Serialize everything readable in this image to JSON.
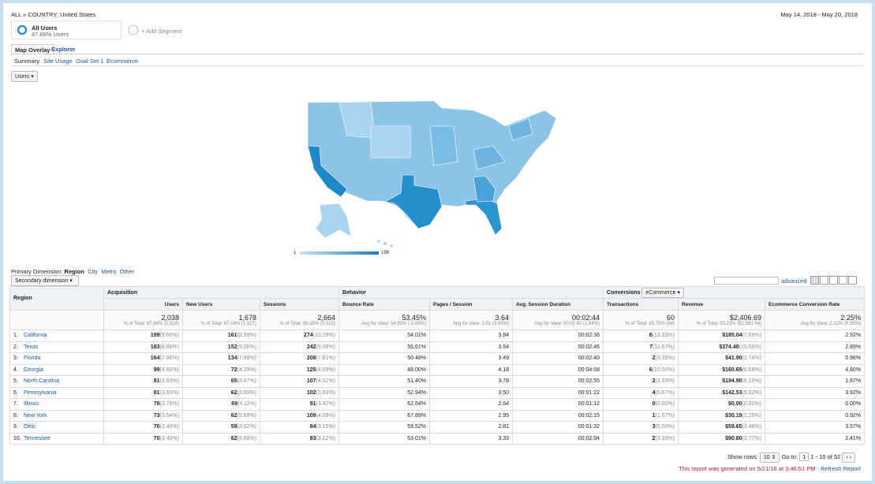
{
  "header": {
    "breadcrumb": "ALL » COUNTRY: United States",
    "date_range": "May 14, 2018 - May 20, 2018"
  },
  "segments": {
    "name": "All Users",
    "sub": "87.88% Users",
    "add": "+ Add Segment"
  },
  "tabs": [
    "Map Overlay",
    "Explorer"
  ],
  "subtabs": [
    "Summary",
    "Site Usage",
    "Goal Set 1",
    "Ecommerce"
  ],
  "metric_select": "Users",
  "map": {
    "legend_min": "1",
    "legend_max": "199"
  },
  "dimensions": {
    "label": "Primary Dimension:",
    "options": [
      "Region",
      "City",
      "Metro",
      "Other"
    ],
    "secondary": "Secondary dimension",
    "advanced": "advanced"
  },
  "table": {
    "region_header": "Region",
    "groups": [
      "Acquisition",
      "Behavior",
      "Conversions"
    ],
    "conversion_select": "eCommerce",
    "columns": [
      "Users",
      "New Users",
      "Sessions",
      "Bounce Rate",
      "Pages / Session",
      "Avg. Session Duration",
      "Transactions",
      "Revenue",
      "Ecommerce Conversion Rate"
    ],
    "totals": [
      [
        "2,038",
        "% of Total: 87.88% (2,319)"
      ],
      [
        "1,678",
        "% of Total: 87.08% (1,927)"
      ],
      [
        "2,664",
        "% of Total: 88.15% (3,022)"
      ],
      [
        "53.45%",
        "Avg for View: 54.93% (-2.69%)"
      ],
      [
        "3.64",
        "Avg for View: 3.51 (3.68%)"
      ],
      [
        "00:02:44",
        "Avg for View: 00:02:42 (1.64%)"
      ],
      [
        "60",
        "% of Total: 93.75% (64)"
      ],
      [
        "$2,406.69",
        "% of Total: 93.23% ($2,581.44)"
      ],
      [
        "2.25%",
        "Avg for View: 2.12% (6.35%)"
      ]
    ],
    "rows": [
      {
        "num": "1.",
        "region": "California",
        "cells": [
          [
            "199",
            "(9.66%)"
          ],
          [
            "161",
            "(9.59%)"
          ],
          [
            "274",
            "(10.29%)"
          ],
          "54.01%",
          "3.84",
          "00:02:36",
          [
            "8",
            "(13.33%)"
          ],
          [
            "$185.04",
            "(7.69%)"
          ],
          "2.92%"
        ]
      },
      {
        "num": "2.",
        "region": "Texas",
        "cells": [
          [
            "183",
            "(8.88%)"
          ],
          [
            "152",
            "(9.06%)"
          ],
          [
            "242",
            "(9.08%)"
          ],
          "56.61%",
          "3.54",
          "00:02:46",
          [
            "7",
            "(11.67%)"
          ],
          [
            "$374.40",
            "(15.56%)"
          ],
          "2.89%"
        ]
      },
      {
        "num": "3.",
        "region": "Florida",
        "cells": [
          [
            "164",
            "(7.96%)"
          ],
          [
            "134",
            "(7.99%)"
          ],
          [
            "208",
            "(7.81%)"
          ],
          "50.48%",
          "3.49",
          "00:02:40",
          [
            "2",
            "(3.33%)"
          ],
          [
            "$41.90",
            "(1.74%)"
          ],
          "0.96%"
        ]
      },
      {
        "num": "4.",
        "region": "Georgia",
        "cells": [
          [
            "99",
            "(4.80%)"
          ],
          [
            "72",
            "(4.29%)"
          ],
          [
            "125",
            "(4.69%)"
          ],
          "48.00%",
          "4.18",
          "00:04:08",
          [
            "6",
            "(10.00%)"
          ],
          [
            "$160.65",
            "(6.68%)"
          ],
          "4.80%"
        ]
      },
      {
        "num": "5.",
        "region": "North Carolina",
        "cells": [
          [
            "81",
            "(3.93%)"
          ],
          [
            "65",
            "(3.87%)"
          ],
          [
            "107",
            "(4.02%)"
          ],
          "51.40%",
          "3.78",
          "00:02:55",
          [
            "2",
            "(3.33%)"
          ],
          [
            "$194.90",
            "(8.10%)"
          ],
          "1.87%"
        ]
      },
      {
        "num": "6.",
        "region": "Pennsylvania",
        "cells": [
          [
            "81",
            "(3.93%)"
          ],
          [
            "62",
            "(3.69%)"
          ],
          [
            "102",
            "(3.83%)"
          ],
          "52.94%",
          "3.50",
          "00:01:22",
          [
            "4",
            "(6.67%)"
          ],
          [
            "$142.53",
            "(5.92%)"
          ],
          "3.92%"
        ]
      },
      {
        "num": "7.",
        "region": "Illinois",
        "cells": [
          [
            "78",
            "(3.78%)"
          ],
          [
            "69",
            "(4.11%)"
          ],
          [
            "91",
            "(3.42%)"
          ],
          "62.64%",
          "2.64",
          "00:01:12",
          [
            "0",
            "(0.00%)"
          ],
          [
            "$0.00",
            "(0.00%)"
          ],
          "0.00%"
        ]
      },
      {
        "num": "8.",
        "region": "New York",
        "cells": [
          [
            "73",
            "(3.54%)"
          ],
          [
            "62",
            "(3.69%)"
          ],
          [
            "109",
            "(4.09%)"
          ],
          "67.89%",
          "2.95",
          "00:02:15",
          [
            "1",
            "(1.67%)"
          ],
          [
            "$30.19",
            "(1.25%)"
          ],
          "0.92%"
        ]
      },
      {
        "num": "9.",
        "region": "Ohio",
        "cells": [
          [
            "70",
            "(3.40%)"
          ],
          [
            "59",
            "(3.52%)"
          ],
          [
            "84",
            "(3.15%)"
          ],
          "59.52%",
          "2.81",
          "00:01:32",
          [
            "3",
            "(5.00%)"
          ],
          [
            "$59.65",
            "(2.48%)"
          ],
          "3.57%"
        ]
      },
      {
        "num": "10.",
        "region": "Tennessee",
        "cells": [
          [
            "70",
            "(3.40%)"
          ],
          [
            "62",
            "(3.69%)"
          ],
          [
            "83",
            "(3.12%)"
          ],
          "53.01%",
          "3.33",
          "00:02:04",
          [
            "2",
            "(3.33%)"
          ],
          [
            "$90.80",
            "(3.77%)"
          ],
          "2.41%"
        ]
      }
    ]
  },
  "footer": {
    "show_rows": "Show rows:",
    "rows_value": "10",
    "goto": "Go to:",
    "goto_value": "1",
    "range": "1 - 10 of 52",
    "generated": "This report was generated on 5/21/18 at 3:46:51 PM - ",
    "refresh": "Refresh Report"
  }
}
